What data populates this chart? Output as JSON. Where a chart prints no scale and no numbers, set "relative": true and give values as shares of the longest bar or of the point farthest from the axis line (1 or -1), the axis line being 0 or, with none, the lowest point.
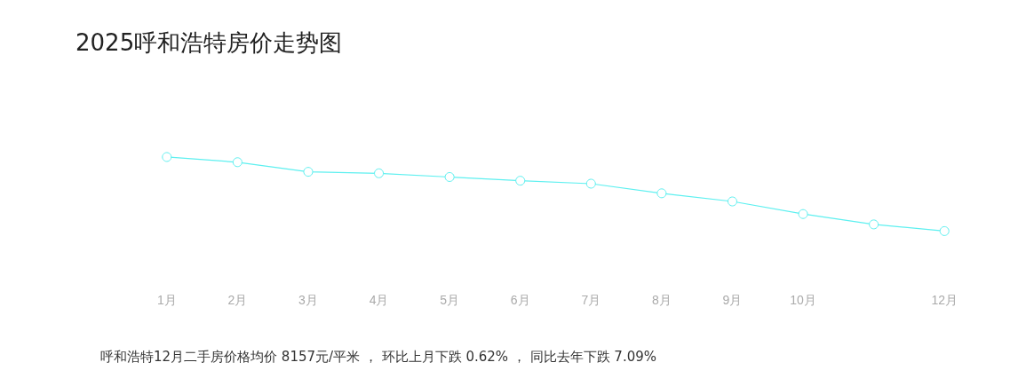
{
  "chart_data": {
    "type": "line",
    "title": "2025呼和浩特房价走势图",
    "categories": [
      "1月",
      "2月",
      "3月",
      "4月",
      "5月",
      "6月",
      "7月",
      "8月",
      "9月",
      "10月",
      null,
      "12月"
    ],
    "series": [
      {
        "color": "#5ef0f0",
        "values": [
          1,
          0.93,
          0.8,
          0.78,
          0.73,
          0.68,
          0.64,
          0.51,
          0.4,
          0.23,
          0.09,
          0
        ]
      }
    ],
    "relative": true,
    "marker": "circle",
    "grid": false,
    "annotations": [
      "呼和浩特12月二手房价格均价 8157元/平米 ， 环比上月下跌 0.62% ， 同比去年下跌 7.09%"
    ]
  }
}
